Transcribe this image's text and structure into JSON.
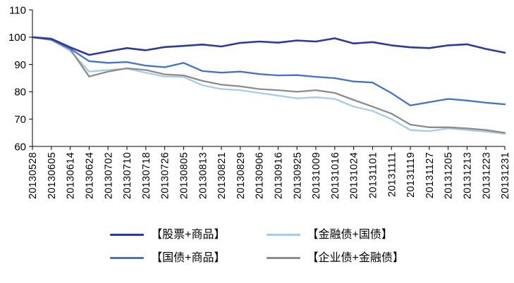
{
  "chart_data": {
    "type": "line",
    "title": "",
    "xlabel": "",
    "ylabel": "",
    "ylim": [
      60,
      110
    ],
    "yticks": [
      60,
      70,
      80,
      90,
      100,
      110
    ],
    "grid": false,
    "legend_position": "bottom",
    "axis_color": "#000000",
    "background": "#ffffff",
    "x": [
      "20130528",
      "20130605",
      "20130614",
      "20130624",
      "20130702",
      "20130710",
      "20130718",
      "20130726",
      "20130805",
      "20130813",
      "20130821",
      "20130829",
      "20130906",
      "20130916",
      "20130925",
      "20131009",
      "20131016",
      "20131024",
      "20131101",
      "20131111",
      "20131119",
      "20131127",
      "20131205",
      "20131213",
      "20131223",
      "20131231"
    ],
    "series": [
      {
        "name": "【股票+商品】",
        "color": "#2B3A9B",
        "width": 2.6,
        "values": [
          100,
          99.4,
          96.3,
          93.5,
          94.8,
          96.0,
          95.2,
          96.4,
          96.8,
          97.3,
          96.6,
          97.9,
          98.4,
          98.0,
          98.8,
          98.4,
          99.6,
          97.7,
          98.2,
          97.0,
          96.3,
          96.0,
          97.0,
          97.4,
          95.7,
          94.3
        ]
      },
      {
        "name": "【国债+商品】",
        "color": "#4273C8",
        "width": 2.3,
        "values": [
          100,
          99.2,
          95.8,
          91.2,
          90.6,
          90.9,
          89.6,
          89.0,
          90.6,
          87.6,
          87.0,
          87.4,
          86.5,
          86.0,
          86.1,
          85.5,
          85.0,
          83.8,
          83.4,
          79.5,
          75.0,
          76.2,
          77.4,
          76.8,
          76.0,
          75.4
        ]
      },
      {
        "name": "【金融债+国债】",
        "color": "#A8CBEA",
        "width": 2.3,
        "values": [
          100,
          99.0,
          95.0,
          87.4,
          88.0,
          88.5,
          87.0,
          85.6,
          85.4,
          82.4,
          81.0,
          80.6,
          79.6,
          78.6,
          77.6,
          78.0,
          77.4,
          74.6,
          73.0,
          70.0,
          66.0,
          65.6,
          66.6,
          66.0,
          65.4,
          64.6
        ]
      },
      {
        "name": "【企业债+金融债】",
        "color": "#8C8C8C",
        "width": 2.3,
        "values": [
          100,
          99.0,
          95.6,
          85.6,
          87.4,
          88.6,
          88.0,
          86.4,
          86.0,
          84.0,
          82.6,
          82.0,
          81.0,
          80.6,
          80.0,
          80.6,
          79.6,
          77.0,
          74.6,
          72.0,
          68.0,
          67.0,
          67.0,
          66.6,
          66.0,
          65.0
        ]
      }
    ],
    "legend_order": [
      0,
      2,
      1,
      3
    ],
    "draw_order": [
      2,
      3,
      1,
      0
    ]
  }
}
